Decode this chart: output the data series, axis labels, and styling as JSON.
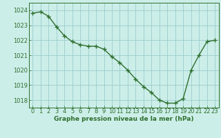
{
  "x": [
    0,
    1,
    2,
    3,
    4,
    5,
    6,
    7,
    8,
    9,
    10,
    11,
    12,
    13,
    14,
    15,
    16,
    17,
    18,
    19,
    20,
    21,
    22,
    23
  ],
  "y": [
    1023.8,
    1023.9,
    1023.6,
    1022.9,
    1022.3,
    1021.9,
    1021.7,
    1021.6,
    1021.6,
    1021.4,
    1020.9,
    1020.5,
    1020.0,
    1019.4,
    1018.9,
    1018.5,
    1018.0,
    1017.8,
    1017.8,
    1018.1,
    1020.0,
    1021.0,
    1021.9,
    1022.0
  ],
  "line_color": "#2d6e2d",
  "marker": "+",
  "marker_size": 4,
  "line_width": 1.0,
  "bg_color": "#cceee8",
  "grid_color": "#99cccc",
  "ylabel_ticks": [
    1018,
    1019,
    1020,
    1021,
    1022,
    1023,
    1024
  ],
  "xlabel_ticks": [
    0,
    1,
    2,
    3,
    4,
    5,
    6,
    7,
    8,
    9,
    10,
    11,
    12,
    13,
    14,
    15,
    16,
    17,
    18,
    19,
    20,
    21,
    22,
    23
  ],
  "xlabel_labels": [
    "0",
    "1",
    "2",
    "3",
    "4",
    "5",
    "6",
    "7",
    "8",
    "9",
    "10",
    "11",
    "12",
    "13",
    "14",
    "15",
    "16",
    "17",
    "18",
    "19",
    "20",
    "21",
    "22",
    "23"
  ],
  "xlabel": "Graphe pression niveau de la mer (hPa)",
  "ylim": [
    1017.5,
    1024.5
  ],
  "xlim": [
    -0.5,
    23.5
  ],
  "xlabel_color": "#2d6e2d",
  "tick_color": "#2d6e2d",
  "xlabel_fontsize": 6.5,
  "tick_fontsize": 6.0
}
